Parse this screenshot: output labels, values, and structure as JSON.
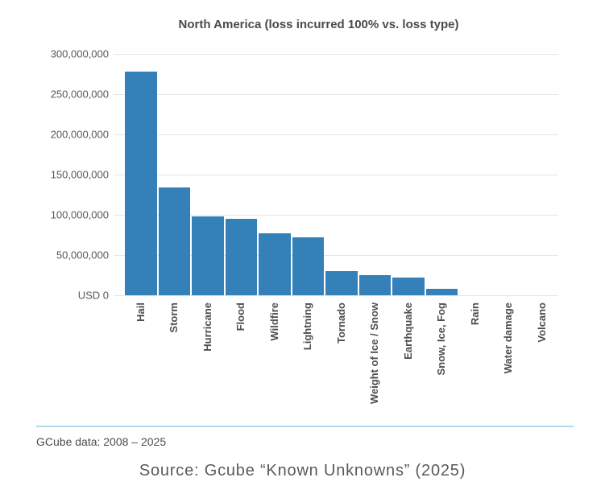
{
  "chart": {
    "title": "North America (loss incurred 100% vs. loss type)"
  },
  "chart_data": {
    "type": "bar",
    "title": "North America (loss incurred 100% vs. loss type)",
    "categories": [
      "Hail",
      "Storm",
      "Hurricane",
      "Flood",
      "Wildfire",
      "Lightning",
      "Tornado",
      "Weight of Ice / Snow",
      "Earthquake",
      "Snow, Ice, Fog",
      "Rain",
      "Water damage",
      "Volcano"
    ],
    "values": [
      278000000,
      134000000,
      98000000,
      95000000,
      77000000,
      72000000,
      30000000,
      25000000,
      22000000,
      8000000,
      0,
      0,
      0
    ],
    "xlabel": "",
    "ylabel": "USD",
    "ylim": [
      0,
      300000000
    ],
    "ytick_interval": 50000000,
    "ytick_labels": [
      "USD 0",
      "50,000,000",
      "100,000,000",
      "150,000,000",
      "200,000,000",
      "250,000,000",
      "300,000,000"
    ],
    "bar_color": "#3381b8",
    "gridline_color": "#e6e6e6",
    "grid": true,
    "legend": false,
    "x_labels_rotated": true
  },
  "footer": {
    "divider_color": "#aedbec",
    "note": "GCube data: 2008 – 2025",
    "source": "Source: Gcube “Known Unknowns” (2025)"
  }
}
